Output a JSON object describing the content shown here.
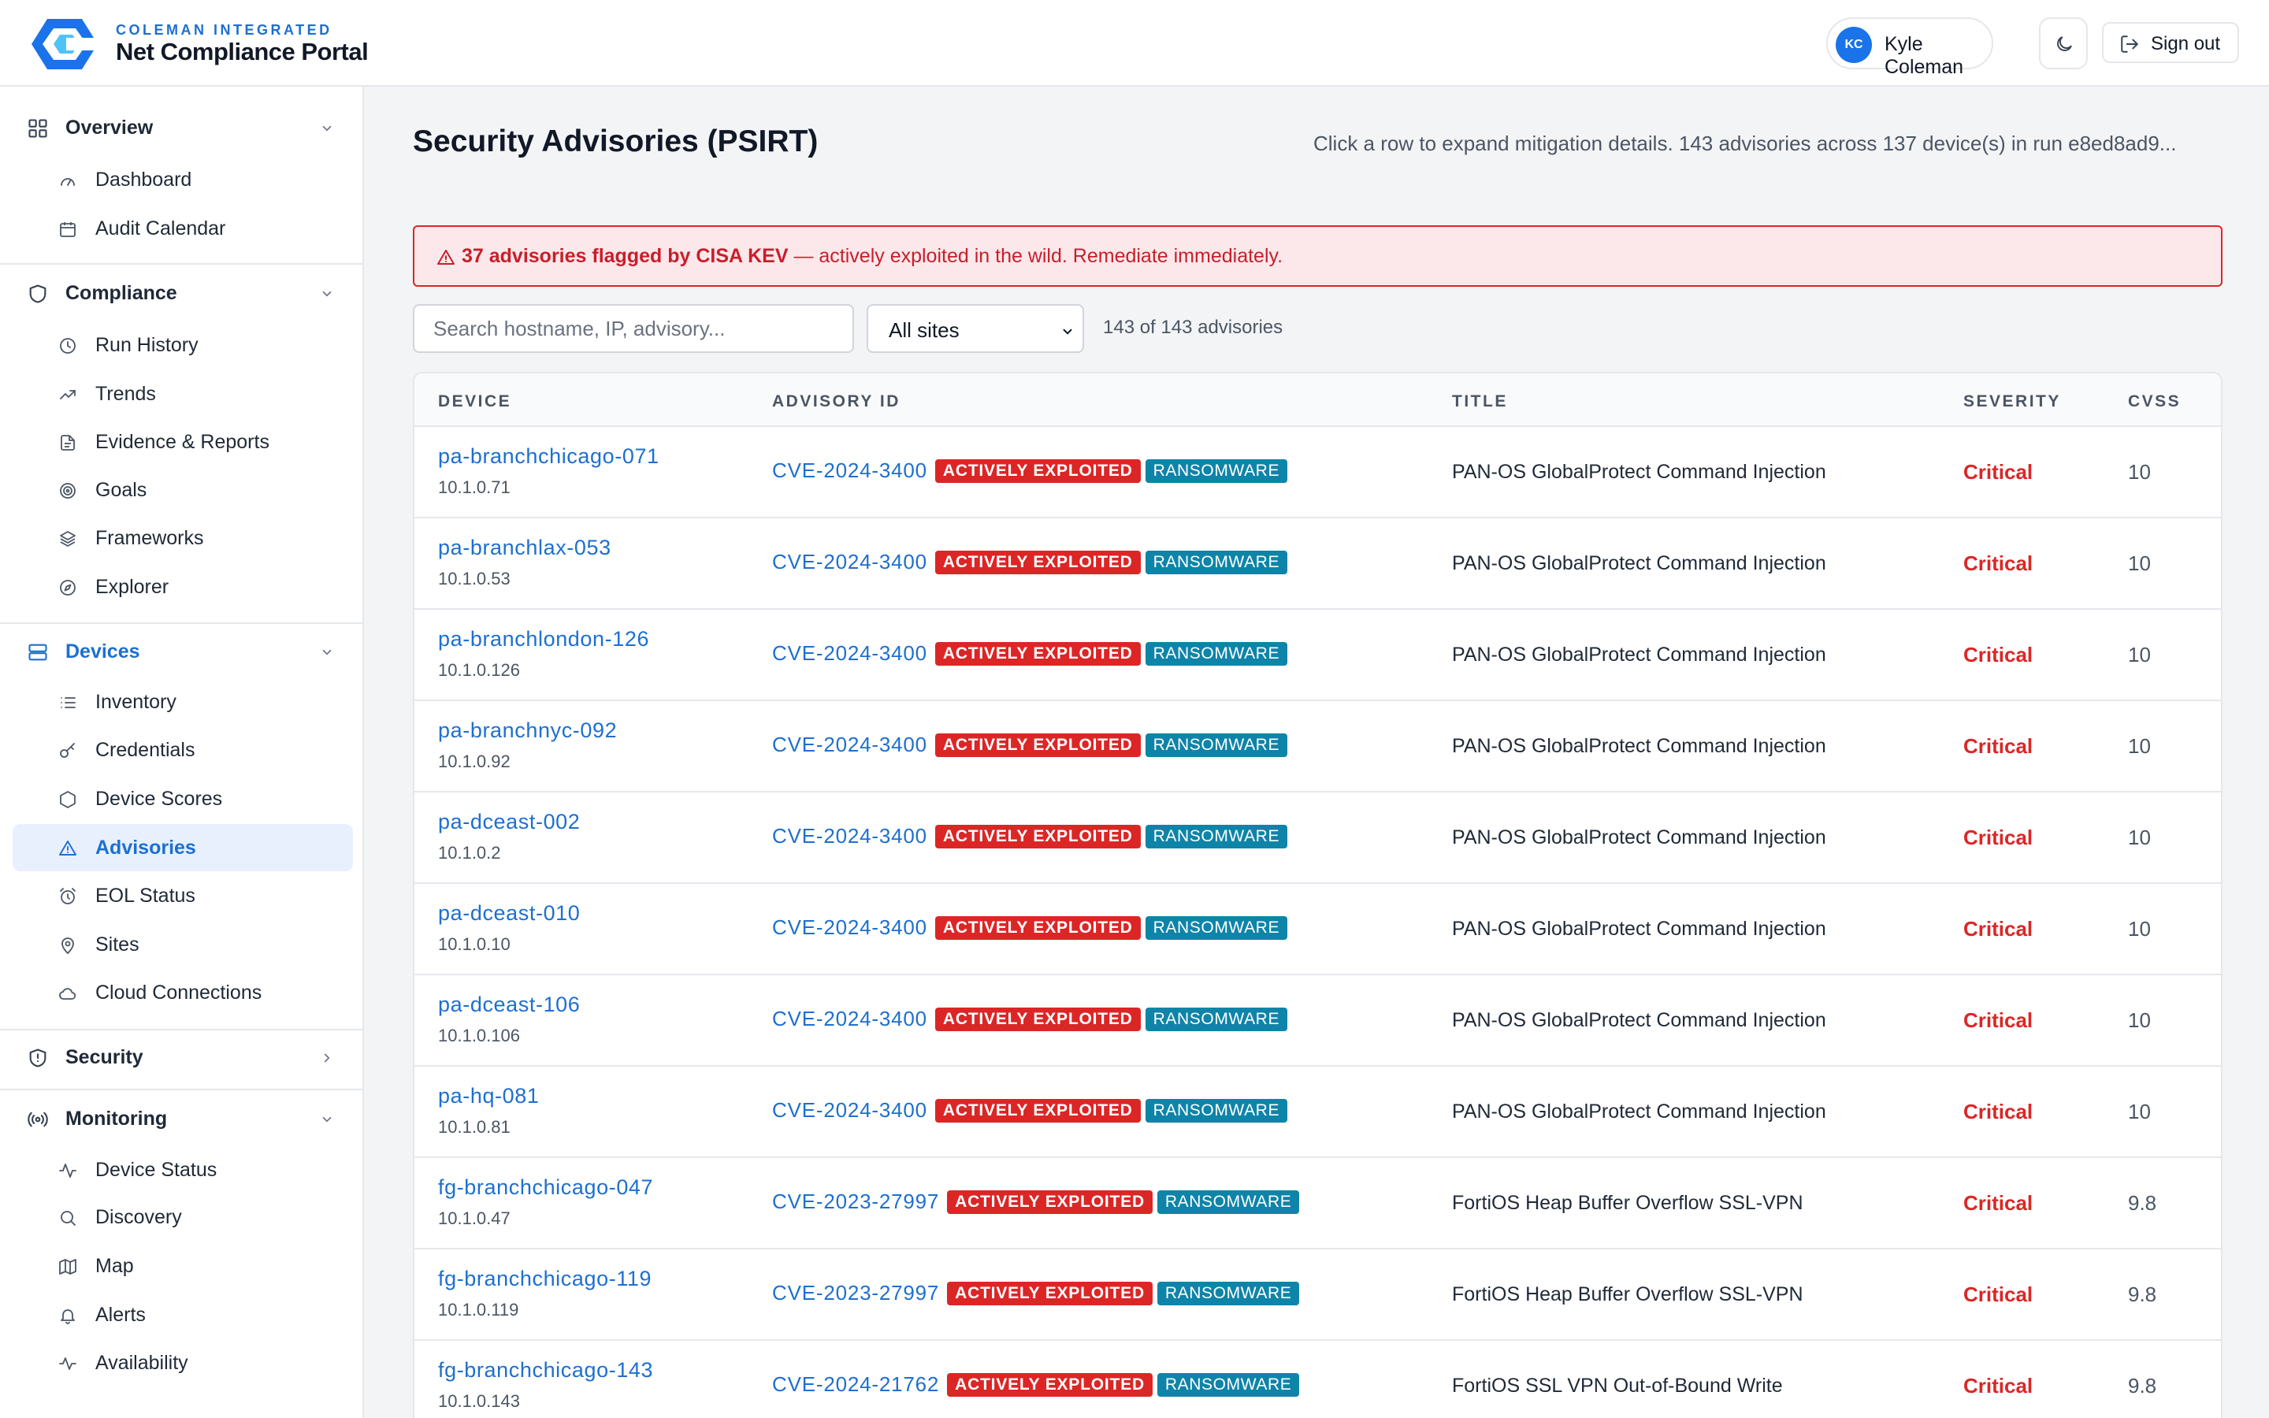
{
  "header": {
    "company": "COLEMAN INTEGRATED",
    "app_name": "Net Compliance Portal",
    "user_initials": "KC",
    "user_name": "Kyle Coleman",
    "sign_out": "Sign out"
  },
  "sidebar": {
    "overview": {
      "label": "Overview",
      "items": [
        "Dashboard",
        "Audit Calendar"
      ]
    },
    "compliance": {
      "label": "Compliance",
      "items": [
        "Run History",
        "Trends",
        "Evidence & Reports",
        "Goals",
        "Frameworks",
        "Explorer"
      ]
    },
    "devices": {
      "label": "Devices",
      "items": [
        "Inventory",
        "Credentials",
        "Device Scores",
        "Advisories",
        "EOL Status",
        "Sites",
        "Cloud Connections"
      ]
    },
    "security": {
      "label": "Security"
    },
    "monitoring": {
      "label": "Monitoring",
      "items": [
        "Device Status",
        "Discovery",
        "Map",
        "Alerts",
        "Availability"
      ]
    }
  },
  "page": {
    "title": "Security Advisories (PSIRT)",
    "description": "Click a row to expand mitigation details. 143 advisories across 137 device(s) in run e8ed8ad9...",
    "alert_bold": "37 advisories flagged by CISA KEV",
    "alert_rest": " — actively exploited in the wild. Remediate immediately.",
    "search_placeholder": "Search hostname, IP, advisory...",
    "site_filter": "All sites",
    "count": "143 of 143 advisories"
  },
  "colors": {
    "accent": "#1d6fd0",
    "critical": "#dc2626",
    "ransomware": "#0e84a8"
  },
  "table": {
    "columns": [
      "DEVICE",
      "ADVISORY ID",
      "TITLE",
      "SEVERITY",
      "CVSS"
    ],
    "rows": [
      {
        "host": "pa-branchchicago-071",
        "ip": "10.1.0.71",
        "cve": "CVE-2024-3400",
        "exploited": "ACTIVELY EXPLOITED",
        "ransomware": "RANSOMWARE",
        "title": "PAN-OS GlobalProtect Command Injection",
        "severity": "Critical",
        "cvss": "10"
      },
      {
        "host": "pa-branchlax-053",
        "ip": "10.1.0.53",
        "cve": "CVE-2024-3400",
        "exploited": "ACTIVELY EXPLOITED",
        "ransomware": "RANSOMWARE",
        "title": "PAN-OS GlobalProtect Command Injection",
        "severity": "Critical",
        "cvss": "10"
      },
      {
        "host": "pa-branchlondon-126",
        "ip": "10.1.0.126",
        "cve": "CVE-2024-3400",
        "exploited": "ACTIVELY EXPLOITED",
        "ransomware": "RANSOMWARE",
        "title": "PAN-OS GlobalProtect Command Injection",
        "severity": "Critical",
        "cvss": "10"
      },
      {
        "host": "pa-branchnyc-092",
        "ip": "10.1.0.92",
        "cve": "CVE-2024-3400",
        "exploited": "ACTIVELY EXPLOITED",
        "ransomware": "RANSOMWARE",
        "title": "PAN-OS GlobalProtect Command Injection",
        "severity": "Critical",
        "cvss": "10"
      },
      {
        "host": "pa-dceast-002",
        "ip": "10.1.0.2",
        "cve": "CVE-2024-3400",
        "exploited": "ACTIVELY EXPLOITED",
        "ransomware": "RANSOMWARE",
        "title": "PAN-OS GlobalProtect Command Injection",
        "severity": "Critical",
        "cvss": "10"
      },
      {
        "host": "pa-dceast-010",
        "ip": "10.1.0.10",
        "cve": "CVE-2024-3400",
        "exploited": "ACTIVELY EXPLOITED",
        "ransomware": "RANSOMWARE",
        "title": "PAN-OS GlobalProtect Command Injection",
        "severity": "Critical",
        "cvss": "10"
      },
      {
        "host": "pa-dceast-106",
        "ip": "10.1.0.106",
        "cve": "CVE-2024-3400",
        "exploited": "ACTIVELY EXPLOITED",
        "ransomware": "RANSOMWARE",
        "title": "PAN-OS GlobalProtect Command Injection",
        "severity": "Critical",
        "cvss": "10"
      },
      {
        "host": "pa-hq-081",
        "ip": "10.1.0.81",
        "cve": "CVE-2024-3400",
        "exploited": "ACTIVELY EXPLOITED",
        "ransomware": "RANSOMWARE",
        "title": "PAN-OS GlobalProtect Command Injection",
        "severity": "Critical",
        "cvss": "10"
      },
      {
        "host": "fg-branchchicago-047",
        "ip": "10.1.0.47",
        "cve": "CVE-2023-27997",
        "exploited": "ACTIVELY EXPLOITED",
        "ransomware": "RANSOMWARE",
        "title": "FortiOS Heap Buffer Overflow SSL-VPN",
        "severity": "Critical",
        "cvss": "9.8"
      },
      {
        "host": "fg-branchchicago-119",
        "ip": "10.1.0.119",
        "cve": "CVE-2023-27997",
        "exploited": "ACTIVELY EXPLOITED",
        "ransomware": "RANSOMWARE",
        "title": "FortiOS Heap Buffer Overflow SSL-VPN",
        "severity": "Critical",
        "cvss": "9.8"
      },
      {
        "host": "fg-branchchicago-143",
        "ip": "10.1.0.143",
        "cve": "CVE-2024-21762",
        "exploited": "ACTIVELY EXPLOITED",
        "ransomware": "RANSOMWARE",
        "title": "FortiOS SSL VPN Out-of-Bound Write",
        "severity": "Critical",
        "cvss": "9.8"
      }
    ]
  }
}
